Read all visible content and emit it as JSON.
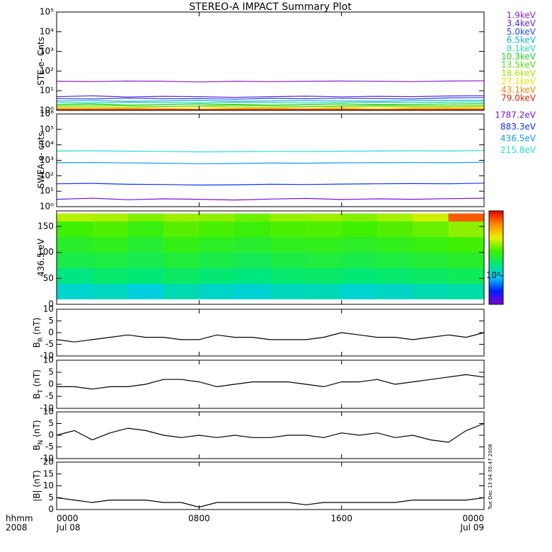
{
  "title": "STEREO-A IMPACT Summary Plot",
  "x_axis": {
    "xlim": [
      0,
      24
    ],
    "xticks": [
      {
        "value": 0,
        "label": "0000"
      },
      {
        "value": 8,
        "label": "0800"
      },
      {
        "value": 16,
        "label": "1600"
      },
      {
        "value": 24,
        "label": "0000"
      }
    ],
    "date_ticks": [
      {
        "value": 0,
        "label": "Jul 08"
      },
      {
        "value": 24,
        "label": "Jul 09"
      }
    ],
    "units_label": "hhmm",
    "year_label": "2008"
  },
  "timestamp": "Tue Dec 13 04:35:47 2008",
  "chart_data": [
    {
      "type": "line",
      "ylabel": "STE e- Cnts",
      "log_y": true,
      "ylim": [
        1,
        100000
      ],
      "yticks": [
        {
          "value": 1,
          "label": "10⁰"
        },
        {
          "value": 10,
          "label": "10¹"
        },
        {
          "value": 100,
          "label": "10²"
        },
        {
          "value": 1000,
          "label": "10³"
        },
        {
          "value": 10000,
          "label": "10⁴"
        },
        {
          "value": 100000,
          "label": "10⁵"
        }
      ],
      "x": [
        0,
        2,
        4,
        6,
        8,
        10,
        12,
        14,
        16,
        18,
        20,
        22,
        24
      ],
      "series": [
        {
          "name": "1.9keV",
          "color": "#8b22cc",
          "values": [
            30,
            29,
            31,
            30,
            28,
            30,
            29,
            30,
            31,
            30,
            29,
            31,
            32
          ]
        },
        {
          "name": "3.4keV",
          "color": "#5a2bd9",
          "values": [
            5,
            5.5,
            4.8,
            5.2,
            5,
            4.6,
            5,
            5.3,
            4.9,
            5.2,
            5,
            5.4,
            5.6
          ]
        },
        {
          "name": "5.0keV",
          "color": "#2244ee",
          "values": [
            4,
            3.8,
            4.2,
            3.9,
            4,
            3.7,
            4.1,
            3.9,
            4.2,
            4,
            3.8,
            4.3,
            4.5
          ]
        },
        {
          "name": "6.5keV",
          "color": "#11aadd",
          "values": [
            3,
            3.1,
            2.9,
            3,
            3.2,
            2.9,
            3,
            3.1,
            3,
            2.9,
            3.1,
            3.2,
            3.3
          ]
        },
        {
          "name": "8.1keV",
          "color": "#22ddaa",
          "values": [
            2.5,
            2.4,
            2.6,
            2.5,
            2.4,
            2.6,
            2.5,
            2.4,
            2.5,
            2.6,
            2.5,
            2.6,
            2.7
          ]
        },
        {
          "name": "10.3keV",
          "color": "#22cc22",
          "values": [
            2,
            2.1,
            1.9,
            2,
            2.1,
            2,
            1.9,
            2,
            2.1,
            2,
            2,
            2.1,
            2.2
          ]
        },
        {
          "name": "13.5keV",
          "color": "#55dd11",
          "values": [
            1.7,
            1.8,
            1.7,
            1.6,
            1.7,
            1.8,
            1.7,
            1.6,
            1.7,
            1.8,
            1.7,
            1.7,
            1.8
          ]
        },
        {
          "name": "18.6keV",
          "color": "#aadd00",
          "values": [
            1.5,
            1.5,
            1.4,
            1.5,
            1.6,
            1.5,
            1.4,
            1.5,
            1.5,
            1.6,
            1.5,
            1.5,
            1.6
          ]
        },
        {
          "name": "27.1keV",
          "color": "#eedd00",
          "values": [
            1.3,
            1.3,
            1.3,
            1.2,
            1.3,
            1.3,
            1.3,
            1.2,
            1.3,
            1.3,
            1.3,
            1.3,
            1.4
          ]
        },
        {
          "name": "43.1keV",
          "color": "#ee8800",
          "values": [
            1.2,
            1.2,
            1.2,
            1.2,
            1.1,
            1.2,
            1.2,
            1.2,
            1.2,
            1.1,
            1.2,
            1.2,
            1.2
          ]
        },
        {
          "name": "79.0keV",
          "color": "#dd2200",
          "values": [
            1.1,
            1.1,
            1.1,
            1.1,
            1.1,
            1.1,
            1.1,
            1.1,
            1.1,
            1.1,
            1.1,
            1.1,
            1.1
          ]
        }
      ]
    },
    {
      "type": "line",
      "ylabel": "SWEA e- cnts",
      "log_y": true,
      "ylim": [
        1,
        1000000
      ],
      "yticks": [
        {
          "value": 1,
          "label": "10⁰"
        },
        {
          "value": 10,
          "label": "10¹"
        },
        {
          "value": 100,
          "label": "10²"
        },
        {
          "value": 1000,
          "label": "10³"
        },
        {
          "value": 10000,
          "label": "10⁴"
        },
        {
          "value": 100000,
          "label": "10⁵"
        },
        {
          "value": 1000000,
          "label": "10⁶"
        }
      ],
      "x": [
        0,
        2,
        4,
        6,
        8,
        10,
        12,
        14,
        16,
        18,
        20,
        22,
        24
      ],
      "series": [
        {
          "name": "1787.2eV",
          "color": "#7711dd",
          "values": [
            3,
            3.5,
            2.8,
            3.2,
            3,
            2.7,
            3.1,
            3.4,
            2.9,
            3.2,
            3,
            3.3,
            3.5
          ]
        },
        {
          "name": "883.3eV",
          "color": "#1133ee",
          "values": [
            30,
            32,
            28,
            27,
            25,
            26,
            28,
            27,
            29,
            30,
            31,
            30,
            33
          ]
        },
        {
          "name": "436.5eV",
          "color": "#1199ee",
          "values": [
            700,
            720,
            680,
            650,
            600,
            620,
            660,
            650,
            690,
            700,
            710,
            700,
            750
          ]
        },
        {
          "name": "215.8eV",
          "color": "#22dddd",
          "values": [
            4000,
            4100,
            3900,
            3800,
            3500,
            3600,
            3800,
            3700,
            3900,
            4000,
            4100,
            4000,
            4300
          ]
        }
      ]
    },
    {
      "type": "heatmap",
      "ylabel": "436.5 eV",
      "ylim": [
        0,
        180
      ],
      "yticks": [
        0,
        50,
        100,
        150
      ],
      "xedges": [
        0,
        2,
        4,
        6,
        8,
        10,
        12,
        14,
        16,
        18,
        20,
        22,
        24
      ],
      "yedges": [
        10,
        40,
        70,
        100,
        130,
        160,
        175
      ],
      "z": [
        [
          110000,
          115000,
          105000,
          120000,
          112000,
          108000,
          116000,
          118000,
          110000,
          114000,
          120000,
          125000
        ],
        [
          140000,
          150000,
          145000,
          155000,
          148000,
          142000,
          150000,
          152000,
          146000,
          150000,
          156000,
          160000
        ],
        [
          170000,
          175000,
          168000,
          180000,
          172000,
          165000,
          174000,
          178000,
          170000,
          176000,
          182000,
          190000
        ],
        [
          190000,
          200000,
          185000,
          205000,
          195000,
          188000,
          198000,
          200000,
          192000,
          200000,
          210000,
          220000
        ],
        [
          220000,
          230000,
          210000,
          235000,
          225000,
          215000,
          228000,
          230000,
          222000,
          232000,
          245000,
          270000
        ],
        [
          300000,
          290000,
          260000,
          280000,
          270000,
          250000,
          275000,
          280000,
          265000,
          285000,
          320000,
          600000
        ]
      ],
      "zlim": [
        40000,
        800000
      ],
      "log_z": true,
      "colorscale": [
        "#7a00d0",
        "#0020ff",
        "#00c8ff",
        "#00e878",
        "#40f000",
        "#e8f000",
        "#ff8800",
        "#e80000"
      ],
      "zticks": [
        {
          "value": 100000,
          "label": "10⁵"
        }
      ]
    },
    {
      "type": "line",
      "ylabel": "B",
      "ysub": "R",
      "yunit": " (nT)",
      "ylim": [
        -10,
        10
      ],
      "yticks": [
        -10,
        -5,
        0,
        5,
        10
      ],
      "x": [
        0,
        1,
        2,
        3,
        4,
        5,
        6,
        7,
        8,
        9,
        10,
        11,
        12,
        13,
        14,
        15,
        16,
        17,
        18,
        19,
        20,
        21,
        22,
        23,
        24
      ],
      "series": [
        {
          "color": "#000000",
          "values": [
            -3,
            -4,
            -3,
            -2,
            -1,
            -2,
            -2,
            -3,
            -3,
            -1,
            -2,
            -2,
            -3,
            -3,
            -3,
            -2,
            0,
            -1,
            -2,
            -2,
            -3,
            -2,
            -1,
            -2,
            0
          ]
        }
      ]
    },
    {
      "type": "line",
      "ylabel": "B",
      "ysub": "T",
      "yunit": " (nT)",
      "ylim": [
        -10,
        10
      ],
      "yticks": [
        -10,
        -5,
        0,
        5,
        10
      ],
      "x": [
        0,
        1,
        2,
        3,
        4,
        5,
        6,
        7,
        8,
        9,
        10,
        11,
        12,
        13,
        14,
        15,
        16,
        17,
        18,
        19,
        20,
        21,
        22,
        23,
        24
      ],
      "series": [
        {
          "color": "#000000",
          "values": [
            -1,
            -1,
            -2,
            -1,
            -1,
            0,
            2,
            2,
            1,
            -1,
            0,
            1,
            1,
            1,
            0,
            -1,
            1,
            1,
            2,
            0,
            1,
            2,
            3,
            4,
            3
          ]
        }
      ]
    },
    {
      "type": "line",
      "ylabel": "B",
      "ysub": "N",
      "yunit": " (nT)",
      "ylim": [
        -10,
        10
      ],
      "yticks": [
        -10,
        -5,
        0,
        5,
        10
      ],
      "x": [
        0,
        1,
        2,
        3,
        4,
        5,
        6,
        7,
        8,
        9,
        10,
        11,
        12,
        13,
        14,
        15,
        16,
        17,
        18,
        19,
        20,
        21,
        22,
        23,
        24
      ],
      "series": [
        {
          "color": "#000000",
          "values": [
            0,
            2,
            -2,
            1,
            3,
            2,
            0,
            -1,
            0,
            -1,
            0,
            -1,
            -1,
            0,
            0,
            -1,
            1,
            0,
            1,
            -1,
            0,
            -2,
            -3,
            2,
            5
          ]
        }
      ]
    },
    {
      "type": "line",
      "ylabel": "|B| (nT)",
      "ylim": [
        0,
        20
      ],
      "yticks": [
        0,
        5,
        10,
        15,
        20
      ],
      "x": [
        0,
        1,
        2,
        3,
        4,
        5,
        6,
        7,
        8,
        9,
        10,
        11,
        12,
        13,
        14,
        15,
        16,
        17,
        18,
        19,
        20,
        21,
        22,
        23,
        24
      ],
      "series": [
        {
          "color": "#000000",
          "values": [
            5,
            4,
            3,
            4,
            4,
            4,
            3,
            3,
            1,
            3,
            3,
            3,
            3,
            3,
            2,
            3,
            3,
            3,
            3,
            3,
            4,
            4,
            4,
            4,
            5
          ]
        }
      ]
    }
  ]
}
